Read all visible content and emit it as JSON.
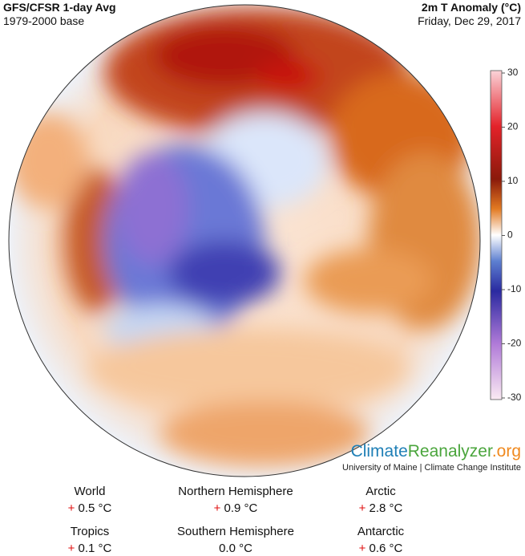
{
  "header": {
    "title": "GFS/CFSR 1-day Avg",
    "subtitle": "1979-2000 base",
    "variable": "2m T Anomaly (°C)",
    "date": "Friday, Dec 29, 2017"
  },
  "colorbar": {
    "range": [
      -30,
      30
    ],
    "ticks": [
      30,
      20,
      10,
      0,
      -10,
      -20,
      -30
    ]
  },
  "brand": {
    "parts": [
      "Climate",
      "Reanalyzer",
      ".org"
    ],
    "affiliation": "University of Maine | Climate Change Institute"
  },
  "stats": [
    {
      "label": "World",
      "sign": "+",
      "value": "0.5 °C"
    },
    {
      "label": "Northern Hemisphere",
      "sign": "+",
      "value": "0.9 °C"
    },
    {
      "label": "Arctic",
      "sign": "+",
      "value": "2.8 °C"
    },
    {
      "label": "Tropics",
      "sign": "+",
      "value": "0.1 °C"
    },
    {
      "label": "Southern Hemisphere",
      "value": "0.0 °C"
    },
    {
      "label": "Antarctic",
      "sign": "+",
      "value": "0.6 °C"
    }
  ]
}
